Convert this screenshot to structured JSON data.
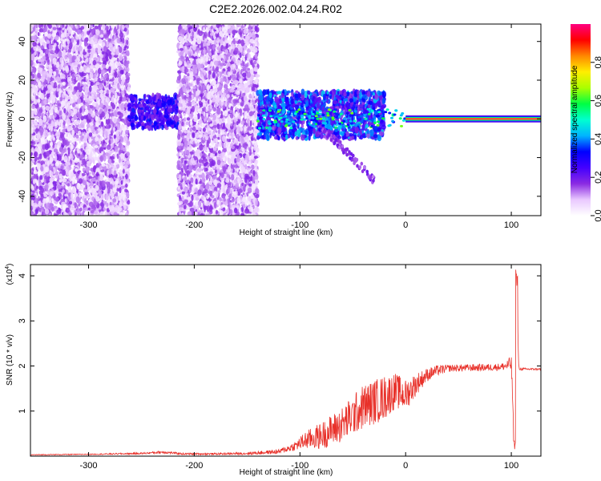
{
  "title": "C2E2.2026.002.04.24.R02",
  "chart_data": [
    {
      "type": "heatmap",
      "xlabel": "Height of straight line (km)",
      "ylabel": "Frequency (Hz)",
      "xlim": [
        -355,
        128
      ],
      "ylim": [
        -50,
        49
      ],
      "x_ticks": [
        -300,
        -200,
        -100,
        0,
        100
      ],
      "x_tick_labels": [
        "-300",
        "-200",
        "-100",
        "0",
        "100"
      ],
      "y_ticks": [
        -40,
        -20,
        0,
        20,
        40
      ],
      "y_tick_labels": [
        "-40",
        "-20",
        "0",
        "20",
        "40"
      ],
      "colorbar": {
        "label": "Normalized spectral amplitude",
        "range": [
          0,
          1
        ],
        "ticks": [
          0.0,
          0.2,
          0.4,
          0.6,
          0.8
        ],
        "tick_labels": [
          "0.0",
          "0.2",
          "0.4",
          "0.6",
          "0.8"
        ],
        "colormap": [
          "#ffffff",
          "#e9c8ff",
          "#8a2be2",
          "#4400ff",
          "#0000ff",
          "#00b4ff",
          "#00ffd0",
          "#00ff44",
          "#aaff00",
          "#ffee00",
          "#ff8800",
          "#ff0000",
          "#ff0080"
        ]
      },
      "description_regions": [
        {
          "x_range": [
            -355,
            -262
          ],
          "y_range": [
            -50,
            49
          ],
          "amplitude": [
            0.02,
            0.18
          ]
        },
        {
          "x_range": [
            -262,
            -215
          ],
          "y_range": [
            -5,
            12
          ],
          "amplitude": [
            0.15,
            0.35
          ]
        },
        {
          "x_range": [
            -215,
            -140
          ],
          "y_range": [
            -50,
            49
          ],
          "amplitude": [
            0.02,
            0.18
          ]
        },
        {
          "x_range": [
            -140,
            -20
          ],
          "y_range": [
            -10,
            14
          ],
          "amplitude": [
            0.15,
            0.45
          ]
        },
        {
          "x_range": [
            0,
            128
          ],
          "y_range": [
            -1,
            1
          ],
          "amplitude": [
            0.85,
            1.0
          ]
        }
      ],
      "tone_line": {
        "x_range": [
          0,
          128
        ],
        "frequency": 0
      }
    },
    {
      "type": "line",
      "xlabel": "Height of straight line (km)",
      "ylabel": "SNR (10 * v/v)",
      "y_scale_label": "(x10",
      "y_scale_exponent": "4",
      "xlim": [
        -355,
        128
      ],
      "ylim": [
        0,
        4.25
      ],
      "x_ticks": [
        -300,
        -200,
        -100,
        0,
        100
      ],
      "x_tick_labels": [
        "-300",
        "-200",
        "-100",
        "0",
        "100"
      ],
      "y_ticks": [
        1,
        2,
        3,
        4
      ],
      "y_tick_labels": [
        "1",
        "2",
        "3",
        "4"
      ],
      "series": [
        {
          "color": "#e8312a",
          "x": [
            -355,
            -300,
            -250,
            -230,
            -210,
            -180,
            -150,
            -120,
            -105,
            -95,
            -80,
            -60,
            -40,
            -20,
            -10,
            0,
            10,
            20,
            30,
            40,
            60,
            80,
            90,
            95,
            100,
            103,
            105,
            107,
            110,
            128
          ],
          "y": [
            0.03,
            0.04,
            0.06,
            0.09,
            0.05,
            0.05,
            0.06,
            0.1,
            0.22,
            0.35,
            0.45,
            0.7,
            1.1,
            1.3,
            1.45,
            1.35,
            1.6,
            1.8,
            1.9,
            1.95,
            1.96,
            1.97,
            1.98,
            2.0,
            2.05,
            0.2,
            4.2,
            1.95,
            1.93,
            1.93
          ],
          "noise": [
            0.01,
            0.01,
            0.02,
            0.03,
            0.02,
            0.02,
            0.03,
            0.05,
            0.1,
            0.2,
            0.3,
            0.4,
            0.5,
            0.5,
            0.4,
            0.35,
            0.25,
            0.15,
            0.12,
            0.08,
            0.08,
            0.08,
            0.08,
            0.1,
            0.2,
            0.1,
            0.2,
            0.05,
            0.03,
            0.02
          ]
        }
      ]
    }
  ]
}
